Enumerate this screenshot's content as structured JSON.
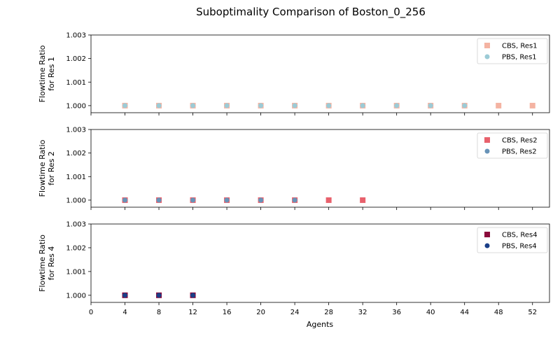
{
  "chart_data": {
    "type": "scatter",
    "title": "Suboptimality Comparison of Boston_0_256",
    "xlabel": "Agents",
    "xlim": [
      0,
      54
    ],
    "xticks": [
      0,
      4,
      8,
      12,
      16,
      20,
      24,
      28,
      32,
      36,
      40,
      44,
      48,
      52
    ],
    "legend_position": "top-right",
    "panels": [
      {
        "ylabel": [
          "Flowtime Ratio",
          "for Res 1"
        ],
        "ylim": [
          0.9997,
          1.003
        ],
        "yticks": [
          "1.000",
          "1.001",
          "1.002",
          "1.003"
        ],
        "series": [
          {
            "name": "CBS, Res1",
            "marker": "square",
            "color": "#f4b3a2",
            "x": [
              4,
              8,
              12,
              16,
              20,
              24,
              28,
              32,
              36,
              40,
              44,
              48,
              52
            ],
            "y": [
              1.0,
              1.0,
              1.0,
              1.0,
              1.0,
              1.0,
              1.0,
              1.0,
              1.0,
              1.0,
              1.0,
              1.0,
              1.0
            ]
          },
          {
            "name": "PBS, Res1",
            "marker": "circle",
            "color": "#9ccbd6",
            "x": [
              4,
              8,
              12,
              16,
              20,
              24,
              28,
              32,
              36,
              40,
              44
            ],
            "y": [
              1.0,
              1.0,
              1.0,
              1.0,
              1.0,
              1.0,
              1.0,
              1.0,
              1.0,
              1.0,
              1.0
            ]
          }
        ]
      },
      {
        "ylabel": [
          "Flowtime Ratio",
          "for Res 2"
        ],
        "ylim": [
          0.9997,
          1.003
        ],
        "yticks": [
          "1.000",
          "1.001",
          "1.002",
          "1.003"
        ],
        "series": [
          {
            "name": "CBS, Res2",
            "marker": "square",
            "color": "#e8616c",
            "x": [
              4,
              8,
              12,
              16,
              20,
              24,
              28,
              32
            ],
            "y": [
              1.0,
              1.0,
              1.0,
              1.0,
              1.0,
              1.0,
              1.0,
              1.0
            ]
          },
          {
            "name": "PBS, Res2",
            "marker": "circle",
            "color": "#6893b8",
            "x": [
              4,
              8,
              12,
              16,
              20,
              24
            ],
            "y": [
              1.0,
              1.0,
              1.0,
              1.0,
              1.0,
              1.0
            ]
          }
        ]
      },
      {
        "ylabel": [
          "Flowtime Ratio",
          "for Res 4"
        ],
        "ylim": [
          0.9997,
          1.003
        ],
        "yticks": [
          "1.000",
          "1.001",
          "1.002",
          "1.003"
        ],
        "series": [
          {
            "name": "CBS, Res4",
            "marker": "square",
            "color": "#8b0a3b",
            "x": [
              4,
              8,
              12
            ],
            "y": [
              1.0,
              1.0,
              1.0
            ]
          },
          {
            "name": "PBS, Res4",
            "marker": "circle",
            "color": "#1b3f88",
            "x": [
              4,
              8,
              12
            ],
            "y": [
              1.0,
              1.0,
              1.0
            ]
          }
        ]
      }
    ]
  }
}
